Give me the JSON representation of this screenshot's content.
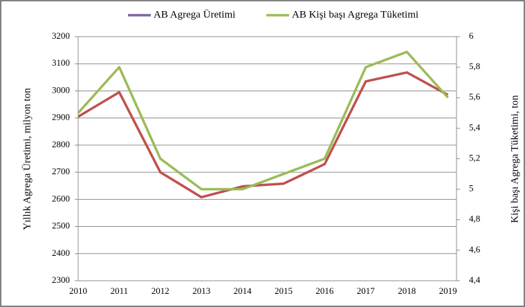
{
  "chart_data": {
    "type": "line",
    "categories": [
      "2010",
      "2011",
      "2012",
      "2013",
      "2014",
      "2015",
      "2016",
      "2017",
      "2018",
      "2019"
    ],
    "series": [
      {
        "name": "AB Agrega Üretimi",
        "color": "#c0504d",
        "legend_color": "#7f63a6",
        "axis": "y",
        "values": [
          2905,
          2995,
          2700,
          2608,
          2648,
          2658,
          2730,
          3035,
          3068,
          2985
        ]
      },
      {
        "name": "AB Kişi başı Agrega Tüketimi",
        "color": "#9bbb59",
        "axis": "y2",
        "values": [
          5.5,
          5.8,
          5.2,
          5.0,
          5.0,
          5.1,
          5.2,
          5.8,
          5.9,
          5.6
        ]
      }
    ],
    "ylabel": "Yıllık Agrega Üretimi, milyon ton",
    "y2label": "Kişi başı Agrega Tüketimi, ton",
    "ylim": [
      2300,
      3200
    ],
    "yticks": [
      2300,
      2400,
      2500,
      2600,
      2700,
      2800,
      2900,
      3000,
      3100,
      3200
    ],
    "y2lim": [
      4.4,
      6
    ],
    "y2ticks": [
      {
        "value": 4.4,
        "label": "4,4"
      },
      {
        "value": 4.6,
        "label": "4,6"
      },
      {
        "value": 4.8,
        "label": "4,8"
      },
      5,
      {
        "value": 5.2,
        "label": "5,2"
      },
      {
        "value": 5.4,
        "label": "5,4"
      },
      {
        "value": 5.6,
        "label": "5,6"
      },
      {
        "value": 5.8,
        "label": "5,8"
      },
      6
    ],
    "grid": true,
    "legend": "top"
  }
}
